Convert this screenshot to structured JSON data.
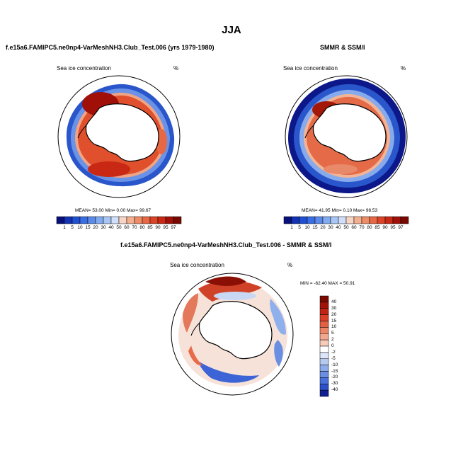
{
  "page": {
    "title": "JJA"
  },
  "panels": {
    "model": {
      "title": "f.e15a6.FAMIPC5.ne0np4-VarMeshNH3.Club_Test.006 (yrs 1979-1980)",
      "left_label": "Sea ice concentration",
      "right_label": "%",
      "stats_text": "MEAN=  53.00  Min=   0.00  Max=  99.67"
    },
    "obs": {
      "title": "SMMR & SSM/I",
      "left_label": "Sea ice concentration",
      "right_label": "%",
      "stats_text": "MEAN=  41.95  Min=   0.10  Max=  98.53"
    },
    "diff": {
      "title": "f.e15a6.FAMIPC5.ne0np4-VarMeshNH3.Club_Test.006 - SMMR & SSM/I",
      "left_label": "Sea ice concentration",
      "right_label": "%",
      "stats_text": "MIN = -62.40 MAX =  50.91"
    }
  },
  "chart_data": [
    {
      "type": "heatmap",
      "title": "f.e15a6.FAMIPC5.ne0np4-VarMeshNH3.Club_Test.006 (yrs 1979-1980)",
      "variable": "Sea ice concentration",
      "units": "%",
      "projection": "south polar stereographic",
      "stats": {
        "mean": 53.0,
        "min": 0.0,
        "max": 99.67
      },
      "colorbar_levels": [
        "1",
        "5",
        "10",
        "15",
        "20",
        "30",
        "40",
        "50",
        "60",
        "70",
        "80",
        "85",
        "90",
        "95",
        "97"
      ],
      "colorbar_colors": [
        "#08107a",
        "#1432b4",
        "#2050d2",
        "#3a6ee4",
        "#5c8ae8",
        "#82aaee",
        "#a8c6f4",
        "#d0def8",
        "#f8d4c4",
        "#f2b090",
        "#ec8c68",
        "#e66844",
        "#dc4428",
        "#c82814",
        "#a01008",
        "#780800"
      ]
    },
    {
      "type": "heatmap",
      "title": "SMMR & SSM/I",
      "variable": "Sea ice concentration",
      "units": "%",
      "projection": "south polar stereographic",
      "stats": {
        "mean": 41.95,
        "min": 0.1,
        "max": 98.53
      },
      "colorbar_levels": [
        "1",
        "5",
        "10",
        "15",
        "20",
        "30",
        "40",
        "50",
        "60",
        "70",
        "80",
        "85",
        "90",
        "95",
        "97"
      ],
      "colorbar_colors": [
        "#08107a",
        "#1432b4",
        "#2050d2",
        "#3a6ee4",
        "#5c8ae8",
        "#82aaee",
        "#a8c6f4",
        "#d0def8",
        "#f8d4c4",
        "#f2b090",
        "#ec8c68",
        "#e66844",
        "#dc4428",
        "#c82814",
        "#a01008",
        "#780800"
      ]
    },
    {
      "type": "heatmap",
      "title": "f.e15a6.FAMIPC5.ne0np4-VarMeshNH3.Club_Test.006 - SMMR & SSM/I",
      "variable": "Sea ice concentration",
      "units": "%",
      "projection": "south polar stereographic",
      "stats": {
        "min": -62.4,
        "max": 50.91
      },
      "colorbar_levels": [
        "40",
        "30",
        "20",
        "15",
        "10",
        "5",
        "2",
        "0",
        "-2",
        "-5",
        "-10",
        "-15",
        "-20",
        "-30",
        "-40"
      ],
      "colorbar_colors": [
        "#7a0a00",
        "#a01408",
        "#c02414",
        "#d84028",
        "#e46044",
        "#ec8466",
        "#f2a88e",
        "#f8ccba",
        "#ffffff",
        "#dce6f8",
        "#b4caf0",
        "#8cacea",
        "#6a8ee2",
        "#4a70dc",
        "#2c50c8",
        "#10208e"
      ]
    }
  ]
}
